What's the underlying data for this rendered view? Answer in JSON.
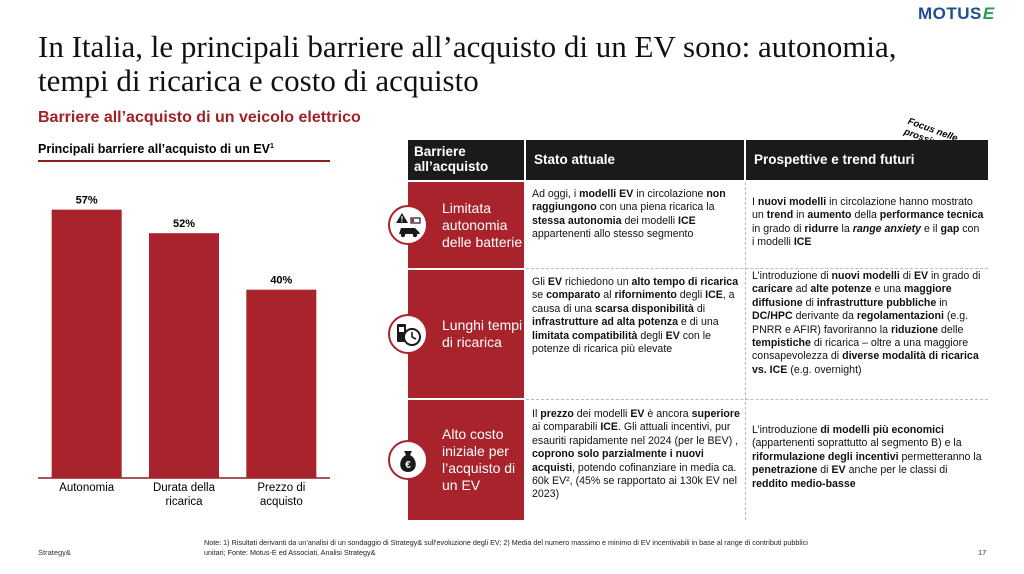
{
  "logo": {
    "text": "MOTUS",
    "mark": "E"
  },
  "title": "In Italia, le principali barriere all’acquisto di un EV sono: autonomia, tempi di ricarica e costo di acquisto",
  "subtitle": "Barriere all’acquisto di un veicolo elettrico",
  "chart_title": "Principali barriere all’acquisto di un EV",
  "chart_title_sup": "1",
  "chart_data": {
    "type": "bar",
    "categories": [
      "Autonomia",
      "Durata della ricarica",
      "Prezzo di acquisto"
    ],
    "categories_display": [
      [
        "Autonomia"
      ],
      [
        "Durata della",
        "ricarica"
      ],
      [
        "Prezzo di",
        "acquisto"
      ]
    ],
    "values": [
      57,
      52,
      40
    ],
    "value_labels": [
      "57%",
      "52%",
      "40%"
    ],
    "ylim": [
      0,
      65
    ],
    "grid": false,
    "bar_color": "#a8232b",
    "title": "Principali barriere all’acquisto di un EV"
  },
  "focus_note": "Focus nelle prossime slides",
  "table": {
    "headers": [
      "Barriere all’acquisto",
      "Stato attuale",
      "Prospettive e trend futuri"
    ],
    "rows": [
      {
        "category": "Limitata autonomia delle batterie",
        "icon": "low-battery-car-icon",
        "current_html": "Ad oggi, i <b>modelli EV</b> in circolazione <b>non raggiungono</b> con una piena ricarica la <b>stessa autonomia</b> dei modelli <b>ICE</b> appartenenti allo stesso segmento",
        "future_html": "I <b>nuovi modelli</b> in circolazione hanno mostrato un <b>trend</b> in <b>aumento</b> della <b>performance tecnica</b> in grado di <b>ridurre</b> la <b><i>range anxiety</i></b> e il <b>gap</b> con i modelli <b>ICE</b>"
      },
      {
        "category": "Lunghi tempi di ricarica",
        "icon": "charging-clock-icon",
        "current_html": "Gli <b>EV</b> richiedono un <b>alto tempo di ricarica</b> se <b>comparato</b> al <b>rifornimento</b> degli <b>ICE</b>, a causa di una <b>scarsa disponibilità</b> di <b>infrastrutture ad alta potenza</b> e di una <b>limitata compatibilità</b> degli <b>EV</b> con le potenze di ricarica più elevate",
        "future_html": "L’introduzione di <b>nuovi modelli</b> di <b>EV</b> in grado di <b>caricare</b> ad <b>alte potenze</b> e una <b>maggiore diffusione</b> di <b>infrastrutture pubbliche</b> in <b>DC/HPC</b> derivante da <b>regolamentazioni</b> (e.g. PNRR e AFIR) favoriranno la <b>riduzione</b> delle <b>tempistiche</b> di ricarica – oltre a una maggiore consapevolezza di <b>diverse modalità di ricarica vs. ICE</b> (e.g. overnight)"
      },
      {
        "category": "Alto costo iniziale per l’acquisto di un EV",
        "icon": "money-bag-icon",
        "current_html": "Il <b>prezzo</b> dei modelli <b>EV</b> è ancora <b>superiore</b> ai comparabili <b>ICE</b>. Gli attuali incentivi, pur esauriti rapidamente nel 2024 (per le BEV) , <b>coprono solo parzialmente i nuovi acquisti</b>, potendo cofinanziare in media ca. 60k EV², (45% se rapportato ai 130k EV nel 2023)",
        "future_html": "L’introduzione <b>di modelli più economici</b> (appartenenti soprattutto al segmento B) e la <b>riformulazione degli incentivi</b> permetteranno la <b>penetrazione</b> di <b>EV</b> anche per le classi di <b>reddito medio-basse</b>"
      }
    ]
  },
  "footer": {
    "brand": "Strategy&",
    "note": "Note: 1) Risultati derivanti da un’analisi di un sondaggio di Strategy& sull’evoluzione degli EV; 2) Media del numero massimo e minimo di EV incentivabili in base al range di contributi pubblici unitari; Fonte: Motus-E ed Associati, Analisi Strategy&",
    "page": "17"
  }
}
